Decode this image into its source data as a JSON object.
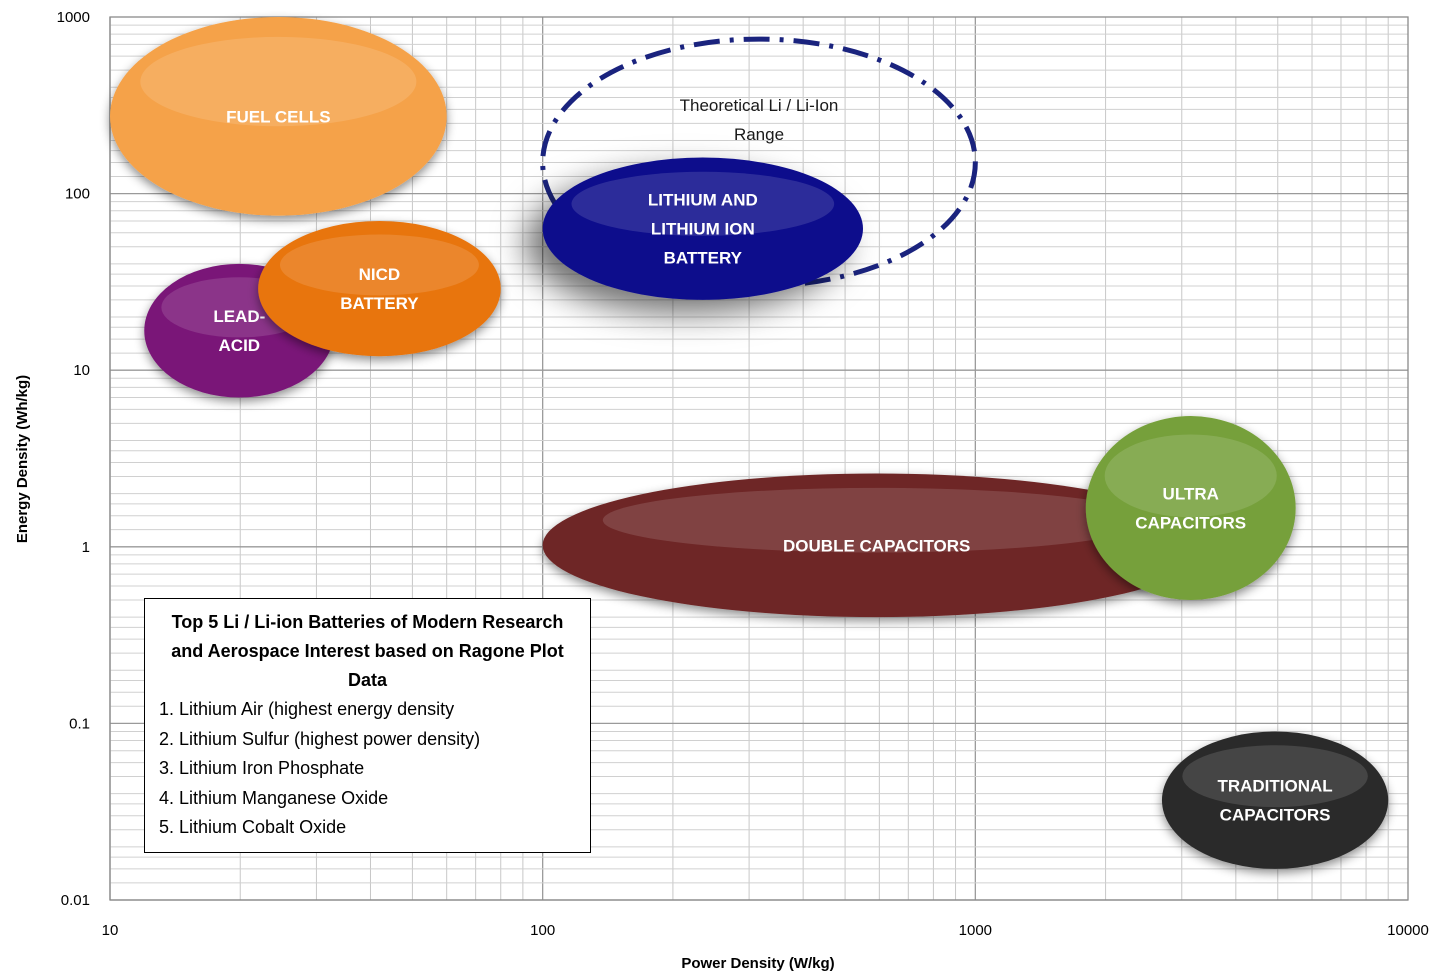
{
  "chart_data": {
    "type": "scatter",
    "x_scale": "log",
    "y_scale": "log",
    "xlim": [
      10,
      10000
    ],
    "ylim": [
      0.01,
      1000
    ],
    "xlabel": "Power Density (W/kg)",
    "ylabel": "Energy Density (Wh/kg)",
    "x_ticks": [
      "10",
      "100",
      "1000",
      "10000"
    ],
    "y_ticks": [
      "0.01",
      "0.1",
      "1",
      "10",
      "100",
      "1000"
    ],
    "grid": true,
    "regions": [
      {
        "name": "Fuel Cells",
        "label": [
          "FUEL CELLS"
        ],
        "x_range": [
          10,
          60
        ],
        "y_range": [
          75,
          1000
        ],
        "color": "#f5a24a",
        "text_color": "#ffffff"
      },
      {
        "name": "Theoretical Li / Li-Ion Range",
        "label": [
          "Theoretical Li / Li-Ion",
          "Range"
        ],
        "x_range": [
          100,
          1000
        ],
        "y_range": [
          30,
          750
        ],
        "color": "#1a237e",
        "style": "dash-dot outline",
        "text_color": "#1a1a1a"
      },
      {
        "name": "Lithium and Lithium Ion Battery",
        "label": [
          "LITHIUM AND",
          "LITHIUM ION",
          "BATTERY"
        ],
        "x_range": [
          100,
          550
        ],
        "y_range": [
          25,
          160
        ],
        "color": "#0d0d8c",
        "text_color": "#ffffff"
      },
      {
        "name": "Lead-Acid",
        "label": [
          "LEAD-",
          "ACID"
        ],
        "x_range": [
          12,
          33
        ],
        "y_range": [
          7,
          40
        ],
        "color": "#7a1778",
        "text_color": "#ffffff"
      },
      {
        "name": "NiCd Battery",
        "label": [
          "NICD",
          "BATTERY"
        ],
        "x_range": [
          22,
          80
        ],
        "y_range": [
          12,
          70
        ],
        "color": "#e8740f",
        "text_color": "#ffffff"
      },
      {
        "name": "Double Capacitors",
        "label": [
          "DOUBLE CAPACITORS"
        ],
        "x_range": [
          100,
          3500
        ],
        "y_range": [
          0.4,
          2.6
        ],
        "color": "#6e2626",
        "text_color": "#ffffff"
      },
      {
        "name": "Ultra Capacitors",
        "label": [
          "ULTRA",
          "CAPACITORS"
        ],
        "x_range": [
          1800,
          5500
        ],
        "y_range": [
          0.5,
          5.5
        ],
        "color": "#76a03a",
        "text_color": "#ffffff"
      },
      {
        "name": "Traditional Capacitors",
        "label": [
          "TRADITIONAL",
          "CAPACITORS"
        ],
        "x_range": [
          2700,
          9000
        ],
        "y_range": [
          0.015,
          0.09
        ],
        "color": "#2b2b2b",
        "text_color": "#ffffff"
      }
    ],
    "annotation": {
      "title": "Top 5 Li / Li-ion Batteries of Modern Research and Aerospace Interest based on Ragone Plot Data",
      "items": [
        "1. Lithium Air (highest energy density",
        "2. Lithium Sulfur (highest power density)",
        "3. Lithium Iron Phosphate",
        "4. Lithium Manganese Oxide",
        "5. Lithium Cobalt Oxide"
      ]
    }
  }
}
